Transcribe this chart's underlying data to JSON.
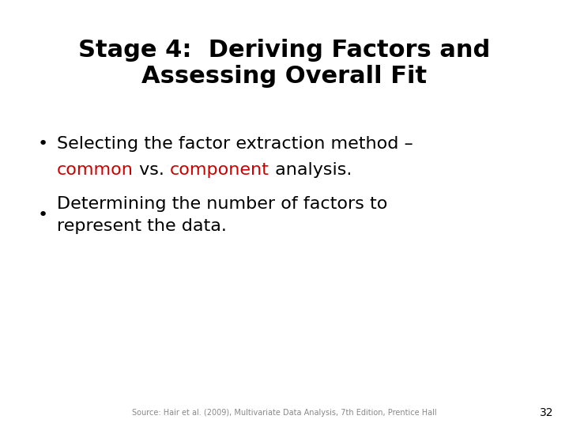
{
  "title_line1": "Stage 4:  Deriving Factors and",
  "title_line2": "Assessing Overall Fit",
  "title_fontsize": 22,
  "title_color": "#000000",
  "background_color": "#ffffff",
  "bullet_fontsize": 16,
  "bullet_color": "#000000",
  "red_color": "#cc0000",
  "footer_text": "Source: Hair et al. (2009), Multivariate Data Analysis, 7th Edition, Prentice Hall",
  "footer_fontsize": 7,
  "footer_color": "#888888",
  "page_number": "32",
  "page_number_fontsize": 10,
  "page_number_color": "#000000"
}
